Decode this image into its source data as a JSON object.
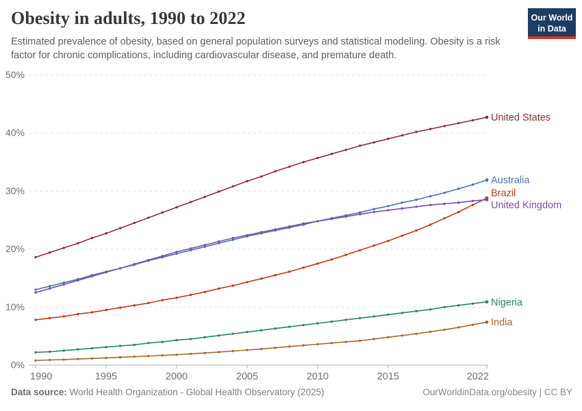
{
  "header": {
    "logo": {
      "line1": "Our World",
      "line2": "in Data",
      "bg_color": "#1D3D63",
      "accent_color": "#D0342C"
    }
  },
  "footer": {
    "source_label": "Data source:",
    "source_value": "World Health Organization - Global Health Observatory (2025)",
    "right_text": "OurWorldinData.org/obesity | CC BY"
  },
  "chart_data": {
    "type": "line",
    "title": "Obesity in adults, 1990 to 2022",
    "subtitle": "Estimated prevalence of obesity, based on general population surveys and statistical modeling. Obesity is a risk factor for chronic complications, including cardiovascular disease, and premature death.",
    "xlabel": "",
    "ylabel": "",
    "xlim": [
      1990,
      2022
    ],
    "ylim": [
      0,
      50
    ],
    "x_ticks": [
      1990,
      1995,
      2000,
      2005,
      2010,
      2015,
      2022
    ],
    "y_ticks": [
      0,
      10,
      20,
      30,
      40,
      50
    ],
    "y_tick_suffix": "%",
    "grid": "horizontal-dashed",
    "legend_position": "line-end-labels",
    "x": [
      1990,
      1991,
      1992,
      1993,
      1994,
      1995,
      1996,
      1997,
      1998,
      1999,
      2000,
      2001,
      2002,
      2003,
      2004,
      2005,
      2006,
      2007,
      2008,
      2009,
      2010,
      2011,
      2012,
      2013,
      2014,
      2015,
      2016,
      2017,
      2018,
      2019,
      2020,
      2021,
      2022
    ],
    "series": [
      {
        "name": "United States",
        "color": "#883039",
        "label_dy": 0,
        "values": [
          18.6,
          19.4,
          20.2,
          21.0,
          21.9,
          22.7,
          23.6,
          24.5,
          25.4,
          26.3,
          27.2,
          28.1,
          29.0,
          29.9,
          30.8,
          31.7,
          32.5,
          33.4,
          34.2,
          35.0,
          35.7,
          36.4,
          37.1,
          37.8,
          38.4,
          39.0,
          39.6,
          40.2,
          40.7,
          41.2,
          41.7,
          42.2,
          42.7
        ]
      },
      {
        "name": "Australia",
        "color": "#4C72A9",
        "label_dy": 0,
        "values": [
          13.0,
          13.6,
          14.2,
          14.8,
          15.5,
          16.1,
          16.7,
          17.3,
          18.0,
          18.6,
          19.2,
          19.8,
          20.4,
          21.0,
          21.6,
          22.2,
          22.7,
          23.2,
          23.7,
          24.2,
          24.8,
          25.3,
          25.8,
          26.3,
          26.9,
          27.4,
          28.0,
          28.5,
          29.1,
          29.7,
          30.4,
          31.1,
          31.9
        ]
      },
      {
        "name": "Brazil",
        "color": "#BF3A1C",
        "label_dy": -7,
        "values": [
          7.8,
          8.1,
          8.4,
          8.8,
          9.1,
          9.5,
          9.9,
          10.3,
          10.7,
          11.2,
          11.6,
          12.1,
          12.6,
          13.2,
          13.7,
          14.3,
          14.9,
          15.5,
          16.1,
          16.8,
          17.5,
          18.2,
          19.0,
          19.8,
          20.6,
          21.4,
          22.3,
          23.2,
          24.2,
          25.3,
          26.4,
          27.6,
          28.8
        ]
      },
      {
        "name": "United Kingdom",
        "color": "#7A4FA3",
        "label_dy": 8,
        "values": [
          12.5,
          13.2,
          13.9,
          14.6,
          15.3,
          16.0,
          16.7,
          17.4,
          18.1,
          18.8,
          19.5,
          20.1,
          20.7,
          21.3,
          21.9,
          22.4,
          22.9,
          23.4,
          23.9,
          24.4,
          24.8,
          25.2,
          25.6,
          26.0,
          26.4,
          26.7,
          27.0,
          27.3,
          27.6,
          27.8,
          28.0,
          28.3,
          28.5
        ]
      },
      {
        "name": "Nigeria",
        "color": "#2C8465",
        "label_dy": 1,
        "values": [
          2.2,
          2.3,
          2.5,
          2.7,
          2.9,
          3.1,
          3.3,
          3.5,
          3.8,
          4.0,
          4.3,
          4.5,
          4.8,
          5.1,
          5.4,
          5.7,
          6.0,
          6.3,
          6.6,
          6.9,
          7.2,
          7.5,
          7.8,
          8.1,
          8.4,
          8.7,
          9.0,
          9.3,
          9.6,
          10.0,
          10.3,
          10.6,
          10.9
        ]
      },
      {
        "name": "India",
        "color": "#9E6B34",
        "label_dy": 0,
        "values": [
          0.8,
          0.88,
          0.96,
          1.05,
          1.15,
          1.25,
          1.35,
          1.45,
          1.56,
          1.68,
          1.8,
          1.94,
          2.09,
          2.25,
          2.42,
          2.6,
          2.79,
          2.99,
          3.2,
          3.4,
          3.6,
          3.8,
          4.0,
          4.2,
          4.5,
          4.8,
          5.1,
          5.4,
          5.75,
          6.1,
          6.5,
          6.95,
          7.4
        ]
      }
    ]
  }
}
